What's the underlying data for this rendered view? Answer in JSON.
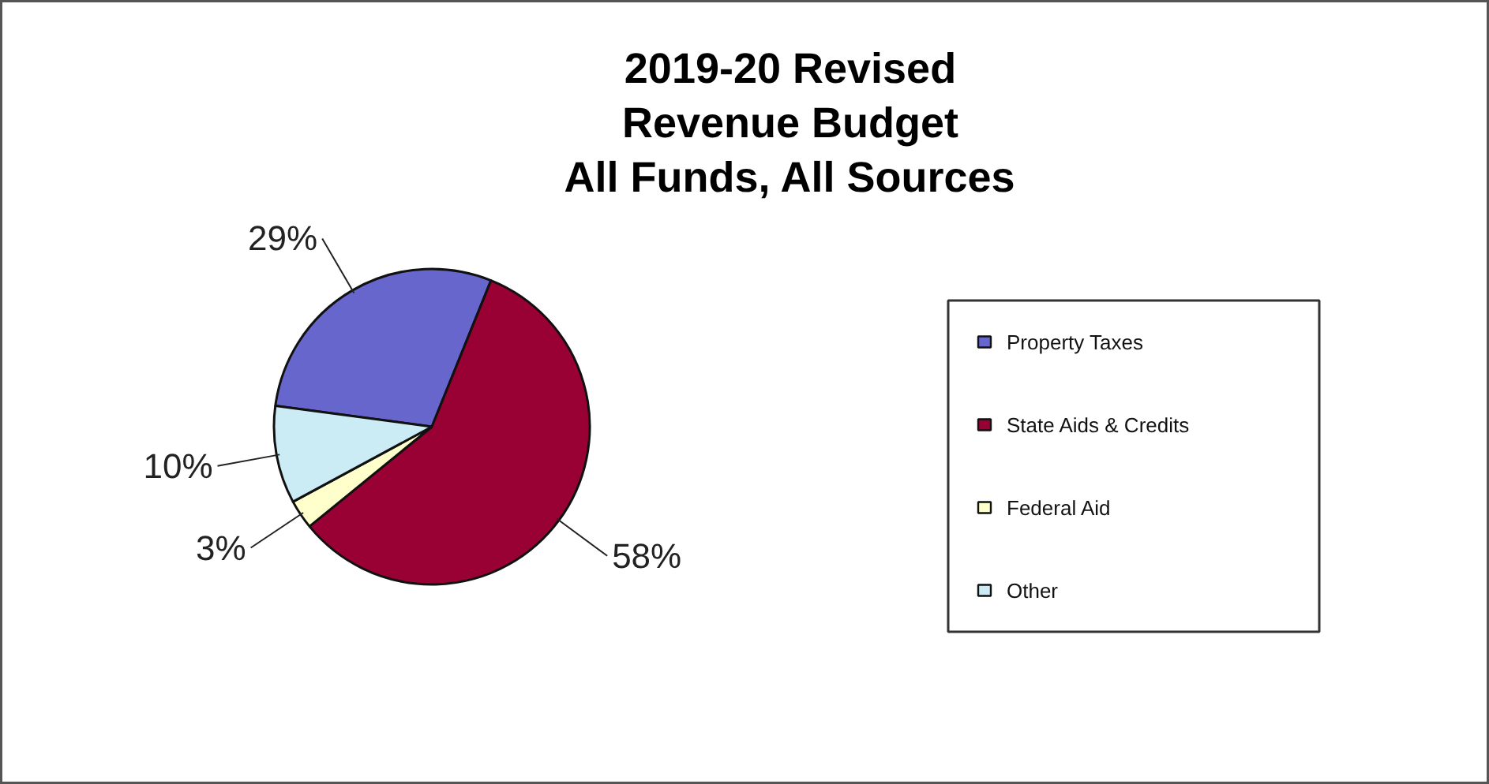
{
  "chart_data": {
    "type": "pie",
    "title": "2019-20 Revised\nRevenue Budget\nAll Funds, All Sources",
    "categories": [
      "Property Taxes",
      "State Aids & Credits",
      "Federal Aid",
      "Other"
    ],
    "values": [
      29,
      58,
      3,
      10
    ],
    "colors": [
      "#6666cc",
      "#990033",
      "#ffffcc",
      "#ccecf5"
    ],
    "value_labels": [
      "29%",
      "58%",
      "3%",
      "10%"
    ],
    "legend": "right"
  }
}
